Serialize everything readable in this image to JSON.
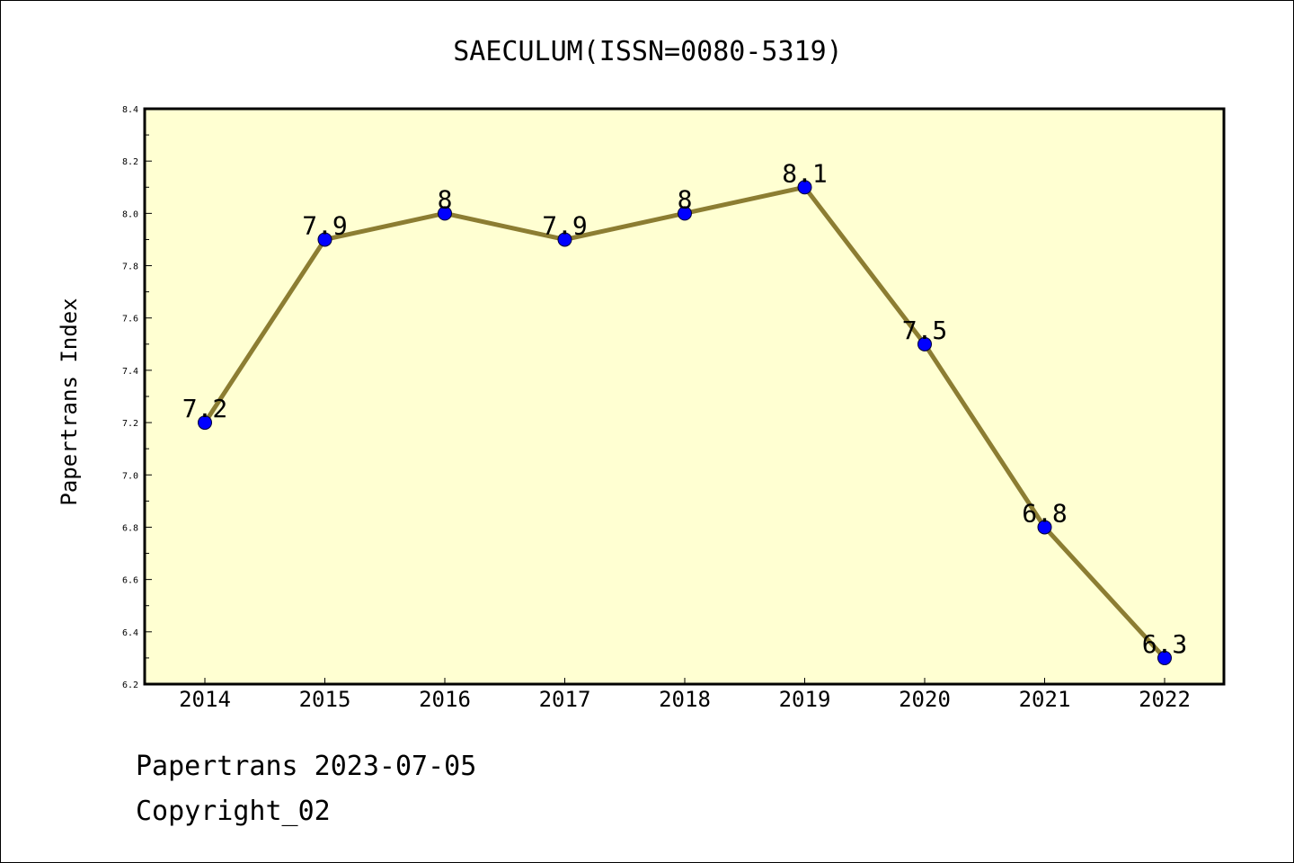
{
  "chart_data": {
    "type": "line",
    "title": "SAECULUM(ISSN=0080-5319)",
    "xlabel": "",
    "ylabel": "Papertrans Index",
    "categories": [
      "2014",
      "2015",
      "2016",
      "2017",
      "2018",
      "2019",
      "2020",
      "2021",
      "2022"
    ],
    "values": [
      7.2,
      7.9,
      8,
      7.9,
      8,
      8.1,
      7.5,
      6.8,
      6.3
    ],
    "data_labels": [
      "7.2",
      "7.9",
      "8",
      "7.9",
      "8",
      "8.1",
      "7.5",
      "6.8",
      "6.3"
    ],
    "ylim": [
      6.2,
      8.4
    ],
    "yticks": [
      "6.2",
      "6.4",
      "6.6",
      "6.8",
      "7.0",
      "7.2",
      "7.4",
      "7.6",
      "7.8",
      "8.0",
      "8.2",
      "8.4"
    ],
    "grid": false,
    "legend": "none",
    "colors": {
      "plot_background": "#ffffd2",
      "line": "#8c7d32",
      "marker": "#0000ff"
    }
  },
  "footer": {
    "line1": "Papertrans 2023-07-05",
    "line2": "Copyright_02"
  }
}
